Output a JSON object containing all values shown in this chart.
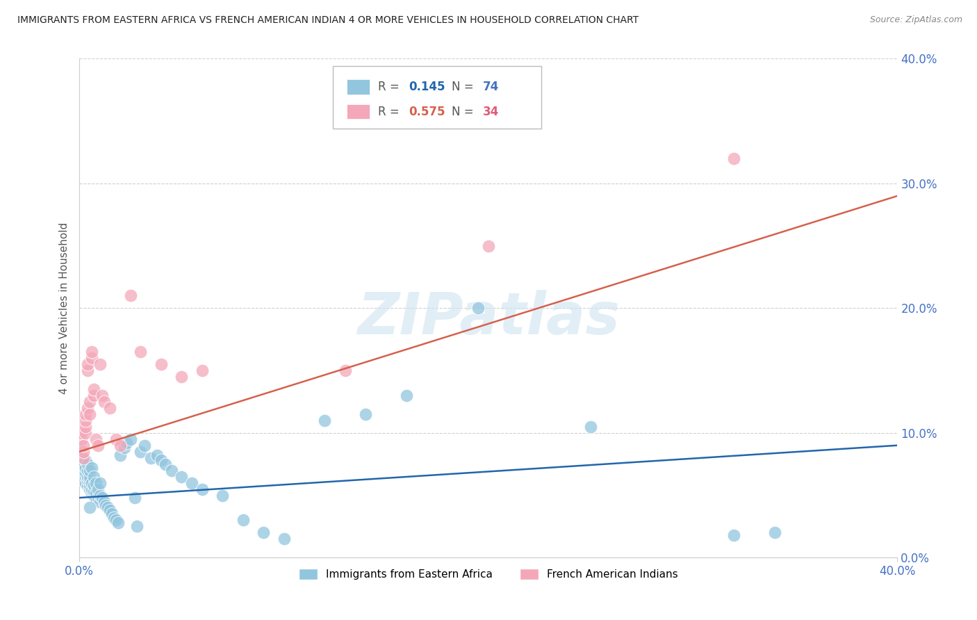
{
  "title": "IMMIGRANTS FROM EASTERN AFRICA VS FRENCH AMERICAN INDIAN 4 OR MORE VEHICLES IN HOUSEHOLD CORRELATION CHART",
  "source": "Source: ZipAtlas.com",
  "ylabel": "4 or more Vehicles in Household",
  "ytick_labels": [
    "0.0%",
    "10.0%",
    "20.0%",
    "30.0%",
    "40.0%"
  ],
  "ytick_values": [
    0.0,
    0.1,
    0.2,
    0.3,
    0.4
  ],
  "xtick_labels": [
    "0.0%",
    "40.0%"
  ],
  "xtick_values": [
    0.0,
    0.4
  ],
  "xlim": [
    0.0,
    0.4
  ],
  "ylim": [
    0.0,
    0.4
  ],
  "watermark": "ZIPatlas",
  "legend_label_blue": "Immigrants from Eastern Africa",
  "legend_label_pink": "French American Indians",
  "blue_color": "#92c5de",
  "pink_color": "#f4a7b9",
  "blue_line_color": "#2166ac",
  "pink_line_color": "#d6604d",
  "axis_label_color": "#4472c4",
  "blue_line_start_x": 0.0,
  "blue_line_start_y": 0.048,
  "blue_line_end_x": 0.4,
  "blue_line_end_y": 0.09,
  "pink_line_start_x": 0.0,
  "pink_line_start_y": 0.085,
  "pink_line_end_x": 0.4,
  "pink_line_end_y": 0.29,
  "blue_x": [
    0.001,
    0.001,
    0.002,
    0.002,
    0.002,
    0.002,
    0.003,
    0.003,
    0.003,
    0.003,
    0.003,
    0.004,
    0.004,
    0.004,
    0.004,
    0.004,
    0.005,
    0.005,
    0.005,
    0.005,
    0.005,
    0.006,
    0.006,
    0.006,
    0.006,
    0.007,
    0.007,
    0.007,
    0.007,
    0.008,
    0.008,
    0.008,
    0.009,
    0.009,
    0.01,
    0.01,
    0.01,
    0.011,
    0.012,
    0.013,
    0.014,
    0.015,
    0.016,
    0.017,
    0.018,
    0.019,
    0.02,
    0.022,
    0.023,
    0.025,
    0.027,
    0.028,
    0.03,
    0.032,
    0.035,
    0.038,
    0.04,
    0.042,
    0.045,
    0.05,
    0.055,
    0.06,
    0.07,
    0.08,
    0.09,
    0.1,
    0.12,
    0.14,
    0.16,
    0.195,
    0.25,
    0.32,
    0.34,
    0.005
  ],
  "blue_y": [
    0.065,
    0.07,
    0.062,
    0.068,
    0.072,
    0.075,
    0.06,
    0.065,
    0.068,
    0.072,
    0.078,
    0.058,
    0.062,
    0.065,
    0.07,
    0.075,
    0.055,
    0.058,
    0.062,
    0.065,
    0.07,
    0.052,
    0.055,
    0.06,
    0.072,
    0.05,
    0.053,
    0.058,
    0.065,
    0.048,
    0.052,
    0.06,
    0.048,
    0.055,
    0.045,
    0.05,
    0.06,
    0.048,
    0.045,
    0.042,
    0.04,
    0.038,
    0.035,
    0.032,
    0.03,
    0.028,
    0.082,
    0.088,
    0.092,
    0.095,
    0.048,
    0.025,
    0.085,
    0.09,
    0.08,
    0.082,
    0.078,
    0.075,
    0.07,
    0.065,
    0.06,
    0.055,
    0.05,
    0.03,
    0.02,
    0.015,
    0.11,
    0.115,
    0.13,
    0.2,
    0.105,
    0.018,
    0.02,
    0.04
  ],
  "pink_x": [
    0.001,
    0.001,
    0.002,
    0.002,
    0.002,
    0.003,
    0.003,
    0.003,
    0.003,
    0.004,
    0.004,
    0.004,
    0.005,
    0.005,
    0.006,
    0.006,
    0.007,
    0.007,
    0.008,
    0.009,
    0.01,
    0.011,
    0.012,
    0.015,
    0.018,
    0.02,
    0.025,
    0.03,
    0.04,
    0.05,
    0.2,
    0.32,
    0.13,
    0.06
  ],
  "pink_y": [
    0.095,
    0.1,
    0.08,
    0.085,
    0.09,
    0.1,
    0.105,
    0.11,
    0.115,
    0.12,
    0.15,
    0.155,
    0.115,
    0.125,
    0.16,
    0.165,
    0.13,
    0.135,
    0.095,
    0.09,
    0.155,
    0.13,
    0.125,
    0.12,
    0.095,
    0.09,
    0.21,
    0.165,
    0.155,
    0.145,
    0.25,
    0.32,
    0.15,
    0.15
  ]
}
